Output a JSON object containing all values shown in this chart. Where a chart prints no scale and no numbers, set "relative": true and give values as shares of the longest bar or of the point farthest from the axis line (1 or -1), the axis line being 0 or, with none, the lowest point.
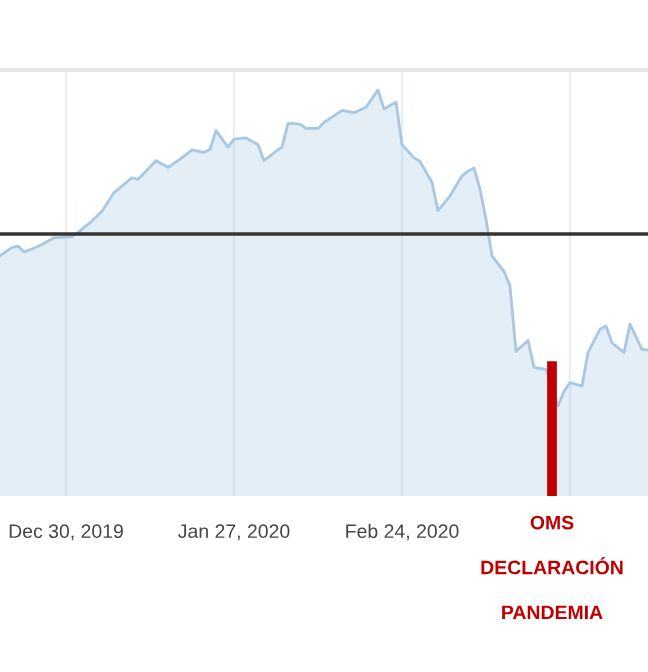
{
  "chart_data": {
    "type": "area",
    "relative": true,
    "color": "#a7c8e0",
    "x": [
      "2019-12-19",
      "2019-12-21",
      "2019-12-22",
      "2019-12-23",
      "2019-12-25",
      "2019-12-26",
      "2019-12-28",
      "2019-12-31",
      "2020-01-01",
      "2020-01-03",
      "2020-01-05",
      "2020-01-07",
      "2020-01-10",
      "2020-01-11",
      "2020-01-14",
      "2020-01-16",
      "2020-01-18",
      "2020-01-20",
      "2020-01-22",
      "2020-01-23",
      "2020-01-24",
      "2020-01-26",
      "2020-01-27",
      "2020-01-29",
      "2020-01-31",
      "2020-02-01",
      "2020-02-03",
      "2020-02-04",
      "2020-02-05",
      "2020-02-07",
      "2020-02-08",
      "2020-02-10",
      "2020-02-11",
      "2020-02-14",
      "2020-02-16",
      "2020-02-18",
      "2020-02-20",
      "2020-02-21",
      "2020-02-23",
      "2020-02-24",
      "2020-02-26",
      "2020-02-27",
      "2020-02-29",
      "2020-03-01",
      "2020-03-03",
      "2020-03-05",
      "2020-03-06",
      "2020-03-07",
      "2020-03-08",
      "2020-03-09",
      "2020-03-10",
      "2020-03-12",
      "2020-03-13",
      "2020-03-14",
      "2020-03-16",
      "2020-03-17",
      "2020-03-19",
      "2020-03-21",
      "2020-03-22",
      "2020-03-23",
      "2020-03-25",
      "2020-03-26",
      "2020-03-28",
      "2020-03-29",
      "2020-03-30",
      "2020-04-01",
      "2020-04-02",
      "2020-04-04",
      "2020-04-05"
    ],
    "values": [
      0.475,
      0.502,
      0.506,
      0.487,
      0.502,
      0.511,
      0.532,
      0.536,
      0.549,
      0.58,
      0.616,
      0.675,
      0.722,
      0.717,
      0.776,
      0.755,
      0.781,
      0.81,
      0.802,
      0.812,
      0.871,
      0.819,
      0.844,
      0.848,
      0.827,
      0.776,
      0.806,
      0.819,
      0.894,
      0.892,
      0.878,
      0.878,
      0.897,
      0.935,
      0.928,
      0.945,
      1.0,
      0.939,
      0.962,
      0.827,
      0.785,
      0.774,
      0.707,
      0.618,
      0.665,
      0.728,
      0.743,
      0.753,
      0.686,
      0.591,
      0.475,
      0.426,
      0.38,
      0.173,
      0.207,
      0.122,
      0.116,
      0.0,
      0.046,
      0.074,
      0.063,
      0.169,
      0.243,
      0.253,
      0.2,
      0.169,
      0.259,
      0.179,
      0.177
    ],
    "xlim": [
      "2019-12-19",
      "2020-04-05"
    ],
    "xticks": [
      {
        "value": "2019-12-30",
        "label": "Dec 30, 2019"
      },
      {
        "value": "2020-01-27",
        "label": "Jan 27, 2020"
      },
      {
        "value": "2020-02-24",
        "label": "Feb 24, 2020"
      },
      {
        "value": "2020-03-23",
        "label": null
      }
    ],
    "grid": "x",
    "ref_lines": [
      {
        "axis": "y",
        "value": 0.544,
        "color": "#333333"
      },
      {
        "axis": "x",
        "value": "2020-03-20",
        "label": "OMS\nDECLARACIÓN\nPANDEMIA",
        "color": "#c00000"
      }
    ]
  }
}
